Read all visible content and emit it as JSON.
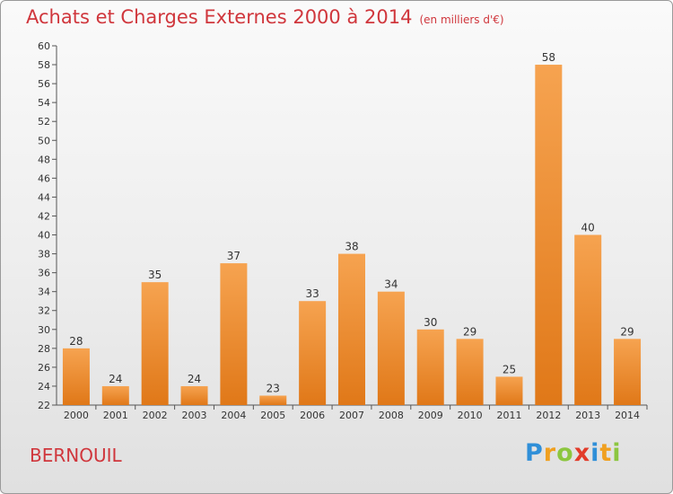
{
  "header": {
    "title": "Achats et Charges Externes 2000 à 2014",
    "subtitle": "(en milliers d'€)"
  },
  "commune": "BERNOUIL",
  "brand": {
    "letters": [
      "P",
      "r",
      "o",
      "x",
      "i",
      "t",
      "i"
    ],
    "colors": [
      "#2f8fd8",
      "#f0a020",
      "#8cc63f",
      "#e23b2a",
      "#2f8fd8",
      "#f0a020",
      "#8cc63f"
    ]
  },
  "colors": {
    "bar_light": "#f6a350",
    "bar_dark": "#e07818",
    "title": "#d0363c"
  },
  "chart_data": {
    "type": "bar",
    "categories": [
      "2000",
      "2001",
      "2002",
      "2003",
      "2004",
      "2005",
      "2006",
      "2007",
      "2008",
      "2009",
      "2010",
      "2011",
      "2012",
      "2013",
      "2014"
    ],
    "values": [
      28,
      24,
      35,
      24,
      37,
      23,
      33,
      38,
      34,
      30,
      29,
      25,
      58,
      40,
      29
    ],
    "ylim": [
      22,
      60
    ],
    "yticks": [
      22,
      24,
      26,
      28,
      30,
      32,
      34,
      36,
      38,
      40,
      42,
      44,
      46,
      48,
      50,
      52,
      54,
      56,
      58,
      60
    ],
    "grid": false,
    "data_labels": true
  }
}
